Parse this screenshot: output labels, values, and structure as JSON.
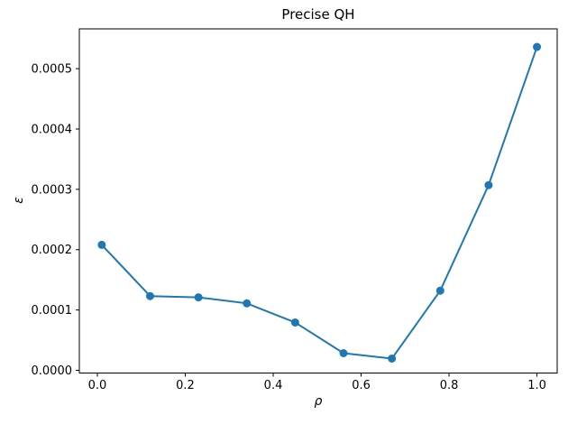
{
  "figure": {
    "title": "Precise QH",
    "background_color": "#ffffff"
  },
  "chart_data": {
    "type": "line",
    "title": "Precise QH",
    "xlabel": "ρ",
    "ylabel": "ε",
    "series": [
      {
        "name": "epsilon-vs-rho",
        "x": [
          0.01,
          0.12,
          0.23,
          0.34,
          0.45,
          0.56,
          0.67,
          0.78,
          0.89,
          1.0
        ],
        "y": [
          0.000208,
          0.000123,
          0.000121,
          0.000111,
          7.93e-05,
          2.84e-05,
          1.95e-05,
          0.000132,
          0.000307,
          0.000536
        ],
        "color": "#1f77b4",
        "marker": "o",
        "line_width": 2,
        "marker_radius": 4.5
      }
    ],
    "xlim": [
      -0.041,
      1.046
    ],
    "ylim": [
      -4.5e-06,
      0.000566
    ],
    "xticks": [
      0.0,
      0.2,
      0.4,
      0.6,
      0.8,
      1.0
    ],
    "xtick_labels": [
      "0.0",
      "0.2",
      "0.4",
      "0.6",
      "0.8",
      "1.0"
    ],
    "yticks": [
      0.0,
      0.0001,
      0.0002,
      0.0003,
      0.0004,
      0.0005
    ],
    "ytick_labels": [
      "0.0000",
      "0.0001",
      "0.0002",
      "0.0003",
      "0.0004",
      "0.0005"
    ],
    "grid": false,
    "legend": null,
    "axis_color": "#000000",
    "text_color": "#000000"
  }
}
